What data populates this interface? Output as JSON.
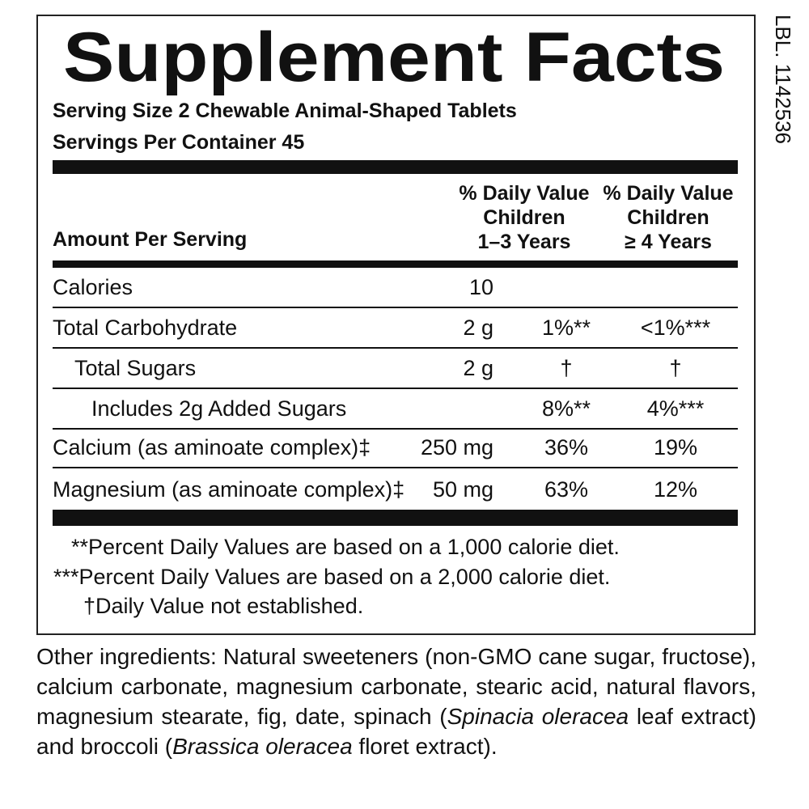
{
  "side_label": "LBL. 1142536",
  "header": {
    "title": "Supplement Facts",
    "serving_size": "Serving Size 2 Chewable Animal-Shaped Tablets",
    "servings_per_container": "Servings Per Container 45"
  },
  "table": {
    "columns": [
      [
        "Amount Per Serving"
      ],
      [
        "% Daily Value",
        "Children",
        "1–3 Years"
      ],
      [
        "% Daily Value",
        "Children",
        "≥ 4 Years"
      ]
    ],
    "rows": [
      [
        "Calories",
        "10"
      ],
      [
        "Total Carbohydrate",
        "2 g",
        "1%**",
        "<1%***"
      ],
      [
        "Total Sugars",
        "2 g",
        "†",
        "†"
      ],
      [
        "Includes 2g Added Sugars",
        "",
        "8%**",
        "4%***"
      ],
      [
        "Calcium (as aminoate complex)‡",
        "250 mg",
        "36%",
        "19%"
      ],
      [
        "Magnesium (as aminoate complex)‡",
        "50 mg",
        "63%",
        "12%"
      ]
    ]
  },
  "footnotes": [
    "**Percent Daily Values are based on a 1,000 calorie diet.",
    "***Percent Daily Values are based on a 2,000 calorie diet.",
    "†Daily Value not established."
  ],
  "other_ingredients": [
    "Other ingredients: Natural sweeteners (non-GMO cane sugar, fructose), calcium carbonate, magnesium carbonate, stearic acid, natural flavors, magnesium stearate, fig, date, spinach (",
    "Spinacia oleracea",
    " leaf extract) and broccoli (",
    "Brassica oleracea",
    " floret extract)."
  ]
}
